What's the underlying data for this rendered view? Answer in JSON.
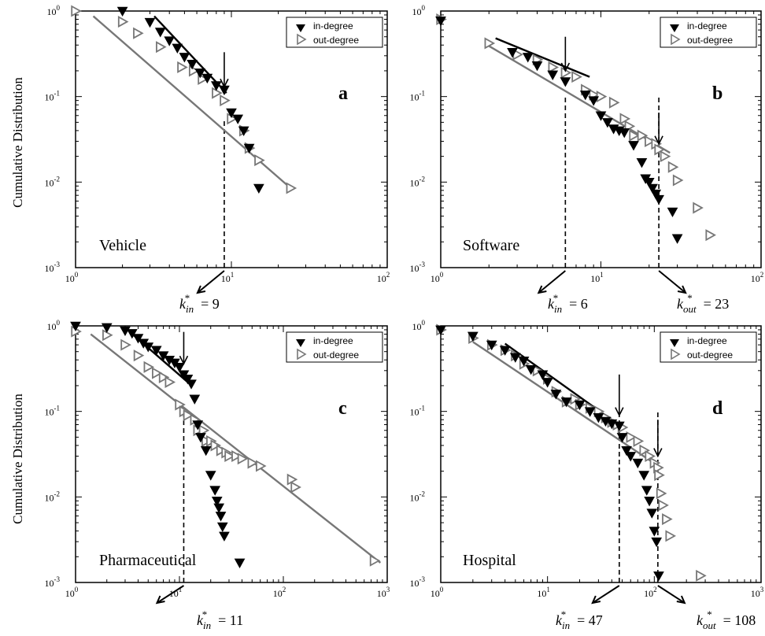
{
  "ylabel": "Cumulative Distribution",
  "legend": {
    "in": "in-degree",
    "out": "out-degree"
  },
  "colors": {
    "in": "#000000",
    "out": "#777777"
  },
  "chart_data": [
    {
      "type": "scatter",
      "letter": "a",
      "name": "Vehicle",
      "xscale": "log",
      "yscale": "log",
      "xlim": [
        1,
        100
      ],
      "ylim": [
        0.001,
        1
      ],
      "xticks": [
        {
          "b": "10",
          "e": "0",
          "v": 1
        },
        {
          "b": "10",
          "e": "1",
          "v": 10
        },
        {
          "b": "10",
          "e": "2",
          "v": 100
        }
      ],
      "yticks": [
        {
          "b": "10",
          "e": "0",
          "v": 1
        },
        {
          "b": "10",
          "e": "-1",
          "v": 0.1
        },
        {
          "b": "10",
          "e": "-2",
          "v": 0.01
        },
        {
          "b": "10",
          "e": "-3",
          "v": 0.001
        }
      ],
      "in_points": [
        [
          2,
          1
        ],
        [
          3,
          0.74
        ],
        [
          3.5,
          0.57
        ],
        [
          4,
          0.45
        ],
        [
          4.5,
          0.37
        ],
        [
          5,
          0.29
        ],
        [
          5.6,
          0.24
        ],
        [
          6.3,
          0.19
        ],
        [
          7,
          0.165
        ],
        [
          8,
          0.135
        ],
        [
          9,
          0.12
        ],
        [
          10,
          0.065
        ],
        [
          11,
          0.055
        ],
        [
          12,
          0.04
        ],
        [
          13,
          0.025
        ],
        [
          15,
          0.0085
        ]
      ],
      "out_points": [
        [
          1,
          1
        ],
        [
          2,
          0.75
        ],
        [
          2.5,
          0.55
        ],
        [
          3.5,
          0.38
        ],
        [
          4.8,
          0.22
        ],
        [
          5.7,
          0.2
        ],
        [
          6.5,
          0.16
        ],
        [
          8,
          0.11
        ],
        [
          9,
          0.09
        ],
        [
          10,
          0.055
        ],
        [
          12,
          0.04
        ],
        [
          13,
          0.025
        ],
        [
          15,
          0.018
        ],
        [
          24,
          0.0085
        ]
      ],
      "in_fit": [
        [
          3.2,
          0.87
        ],
        [
          9.3,
          0.11
        ]
      ],
      "out_fit": [
        [
          1.3,
          0.87
        ],
        [
          24,
          0.0085
        ]
      ],
      "vlines": [
        9
      ],
      "arrows": [
        {
          "x": 9,
          "y_top": 0.33,
          "y_tip": 0.13
        }
      ],
      "annotations": [
        {
          "k": "k",
          "sub": "in",
          "sup": "*",
          "rest": " = 9"
        }
      ]
    },
    {
      "type": "scatter",
      "letter": "b",
      "name": "Software",
      "xscale": "log",
      "yscale": "log",
      "xlim": [
        1,
        100
      ],
      "ylim": [
        0.001,
        1
      ],
      "xticks": [
        {
          "b": "10",
          "e": "0",
          "v": 1
        },
        {
          "b": "10",
          "e": "1",
          "v": 10
        },
        {
          "b": "10",
          "e": "2",
          "v": 100
        }
      ],
      "yticks": [
        {
          "b": "10",
          "e": "0",
          "v": 1
        },
        {
          "b": "10",
          "e": "-1",
          "v": 0.1
        },
        {
          "b": "10",
          "e": "-2",
          "v": 0.01
        },
        {
          "b": "10",
          "e": "-3",
          "v": 0.001
        }
      ],
      "in_points": [
        [
          1,
          0.77
        ],
        [
          2.8,
          0.33
        ],
        [
          3.5,
          0.29
        ],
        [
          4,
          0.23
        ],
        [
          5,
          0.18
        ],
        [
          6,
          0.15
        ],
        [
          8,
          0.105
        ],
        [
          9,
          0.09
        ],
        [
          10,
          0.06
        ],
        [
          11,
          0.05
        ],
        [
          12,
          0.042
        ],
        [
          13,
          0.04
        ],
        [
          14,
          0.038
        ],
        [
          16,
          0.027
        ],
        [
          18,
          0.017
        ],
        [
          19,
          0.011
        ],
        [
          20,
          0.01
        ],
        [
          21,
          0.0085
        ],
        [
          22,
          0.0073
        ],
        [
          23,
          0.0063
        ],
        [
          28,
          0.0045
        ],
        [
          30,
          0.0022
        ]
      ],
      "out_points": [
        [
          1,
          0.8
        ],
        [
          2,
          0.42
        ],
        [
          3,
          0.31
        ],
        [
          4,
          0.27
        ],
        [
          5,
          0.22
        ],
        [
          6,
          0.19
        ],
        [
          7,
          0.17
        ],
        [
          8,
          0.12
        ],
        [
          9,
          0.105
        ],
        [
          10,
          0.1
        ],
        [
          12,
          0.085
        ],
        [
          14,
          0.055
        ],
        [
          15,
          0.045
        ],
        [
          16,
          0.035
        ],
        [
          18,
          0.035
        ],
        [
          20,
          0.03
        ],
        [
          22,
          0.028
        ],
        [
          23,
          0.024
        ],
        [
          25,
          0.02
        ],
        [
          28,
          0.015
        ],
        [
          30,
          0.0105
        ],
        [
          40,
          0.005
        ],
        [
          48,
          0.0024
        ]
      ],
      "in_fit": [
        [
          2.2,
          0.48
        ],
        [
          8.5,
          0.17
        ]
      ],
      "out_fit": [
        [
          2,
          0.39
        ],
        [
          27,
          0.022
        ]
      ],
      "vlines": [
        6,
        23
      ],
      "arrows": [
        {
          "x": 6,
          "y_top": 0.5,
          "y_tip": 0.2
        },
        {
          "x": 23,
          "y_top": 0.065,
          "y_tip": 0.028
        }
      ],
      "annotations": [
        {
          "k": "k",
          "sub": "in",
          "sup": "*",
          "rest": " = 6"
        },
        {
          "k": "k",
          "sub": "out",
          "sup": "*",
          "rest": " = 23"
        }
      ]
    },
    {
      "type": "scatter",
      "letter": "c",
      "name": "Pharmaceutical",
      "xscale": "log",
      "yscale": "log",
      "xlim": [
        1,
        1000
      ],
      "ylim": [
        0.001,
        1
      ],
      "xticks": [
        {
          "b": "10",
          "e": "0",
          "v": 1
        },
        {
          "b": "10",
          "e": "1",
          "v": 10
        },
        {
          "b": "10",
          "e": "2",
          "v": 100
        },
        {
          "b": "10",
          "e": "3",
          "v": 1000
        }
      ],
      "yticks": [
        {
          "b": "10",
          "e": "0",
          "v": 1
        },
        {
          "b": "10",
          "e": "-1",
          "v": 0.1
        },
        {
          "b": "10",
          "e": "-2",
          "v": 0.01
        },
        {
          "b": "10",
          "e": "-3",
          "v": 0.001
        }
      ],
      "in_points": [
        [
          1,
          1
        ],
        [
          2,
          0.96
        ],
        [
          3,
          0.88
        ],
        [
          3.5,
          0.82
        ],
        [
          4,
          0.72
        ],
        [
          4.5,
          0.63
        ],
        [
          5,
          0.57
        ],
        [
          6,
          0.52
        ],
        [
          7,
          0.45
        ],
        [
          8,
          0.4
        ],
        [
          9,
          0.37
        ],
        [
          10,
          0.33
        ],
        [
          11,
          0.27
        ],
        [
          12,
          0.24
        ],
        [
          13,
          0.21
        ],
        [
          14,
          0.14
        ],
        [
          15,
          0.07
        ],
        [
          16,
          0.05
        ],
        [
          18,
          0.035
        ],
        [
          20,
          0.018
        ],
        [
          22,
          0.012
        ],
        [
          23,
          0.009
        ],
        [
          24,
          0.0075
        ],
        [
          25,
          0.006
        ],
        [
          26,
          0.0045
        ],
        [
          27,
          0.0035
        ],
        [
          38,
          0.0017
        ]
      ],
      "out_points": [
        [
          1,
          0.86
        ],
        [
          2,
          0.78
        ],
        [
          3,
          0.6
        ],
        [
          4,
          0.45
        ],
        [
          5,
          0.33
        ],
        [
          6,
          0.28
        ],
        [
          7,
          0.25
        ],
        [
          8,
          0.22
        ],
        [
          10,
          0.12
        ],
        [
          11,
          0.1
        ],
        [
          12,
          0.09
        ],
        [
          14,
          0.08
        ],
        [
          15,
          0.06
        ],
        [
          17,
          0.06
        ],
        [
          18,
          0.045
        ],
        [
          20,
          0.045
        ],
        [
          22,
          0.04
        ],
        [
          25,
          0.035
        ],
        [
          28,
          0.033
        ],
        [
          30,
          0.03
        ],
        [
          35,
          0.03
        ],
        [
          40,
          0.028
        ],
        [
          50,
          0.025
        ],
        [
          60,
          0.023
        ],
        [
          120,
          0.016
        ],
        [
          130,
          0.013
        ],
        [
          750,
          0.0018
        ]
      ],
      "in_fit": [
        [
          3,
          0.95
        ],
        [
          12,
          0.22
        ]
      ],
      "out_fit": [
        [
          1.4,
          0.8
        ],
        [
          860,
          0.0017
        ]
      ],
      "vlines": [
        11
      ],
      "arrows": [
        {
          "x": 11,
          "y_top": 0.85,
          "y_tip": 0.36
        }
      ],
      "annotations": [
        {
          "k": "k",
          "sub": "in",
          "sup": "*",
          "rest": " = 11"
        }
      ]
    },
    {
      "type": "scatter",
      "letter": "d",
      "name": "Hospital",
      "xscale": "log",
      "yscale": "log",
      "xlim": [
        1,
        1000
      ],
      "ylim": [
        0.001,
        1
      ],
      "xticks": [
        {
          "b": "10",
          "e": "0",
          "v": 1
        },
        {
          "b": "10",
          "e": "1",
          "v": 10
        },
        {
          "b": "10",
          "e": "2",
          "v": 100
        },
        {
          "b": "10",
          "e": "3",
          "v": 1000
        }
      ],
      "yticks": [
        {
          "b": "10",
          "e": "0",
          "v": 1
        },
        {
          "b": "10",
          "e": "-1",
          "v": 0.1
        },
        {
          "b": "10",
          "e": "-2",
          "v": 0.01
        },
        {
          "b": "10",
          "e": "-3",
          "v": 0.001
        }
      ],
      "in_points": [
        [
          1,
          0.9
        ],
        [
          2,
          0.76
        ],
        [
          3,
          0.6
        ],
        [
          4,
          0.52
        ],
        [
          5,
          0.43
        ],
        [
          6,
          0.39
        ],
        [
          7,
          0.31
        ],
        [
          9,
          0.27
        ],
        [
          10,
          0.22
        ],
        [
          12,
          0.16
        ],
        [
          15,
          0.13
        ],
        [
          20,
          0.12
        ],
        [
          25,
          0.1
        ],
        [
          30,
          0.085
        ],
        [
          35,
          0.077
        ],
        [
          40,
          0.072
        ],
        [
          47,
          0.068
        ],
        [
          50,
          0.05
        ],
        [
          55,
          0.035
        ],
        [
          60,
          0.03
        ],
        [
          70,
          0.025
        ],
        [
          80,
          0.018
        ],
        [
          85,
          0.012
        ],
        [
          90,
          0.009
        ],
        [
          95,
          0.0065
        ],
        [
          100,
          0.004
        ],
        [
          105,
          0.003
        ],
        [
          110,
          0.0012
        ]
      ],
      "out_points": [
        [
          1,
          0.9
        ],
        [
          2,
          0.72
        ],
        [
          3,
          0.6
        ],
        [
          4,
          0.52
        ],
        [
          5,
          0.45
        ],
        [
          6,
          0.36
        ],
        [
          8,
          0.3
        ],
        [
          10,
          0.24
        ],
        [
          12,
          0.17
        ],
        [
          15,
          0.13
        ],
        [
          18,
          0.14
        ],
        [
          20,
          0.12
        ],
        [
          25,
          0.11
        ],
        [
          30,
          0.1
        ],
        [
          35,
          0.085
        ],
        [
          40,
          0.075
        ],
        [
          45,
          0.07
        ],
        [
          50,
          0.065
        ],
        [
          60,
          0.05
        ],
        [
          70,
          0.045
        ],
        [
          80,
          0.035
        ],
        [
          90,
          0.03
        ],
        [
          100,
          0.025
        ],
        [
          108,
          0.022
        ],
        [
          110,
          0.018
        ],
        [
          115,
          0.011
        ],
        [
          120,
          0.008
        ],
        [
          130,
          0.0055
        ],
        [
          140,
          0.0035
        ],
        [
          270,
          0.0012
        ]
      ],
      "in_fit": [
        [
          4,
          0.62
        ],
        [
          47,
          0.069
        ]
      ],
      "out_fit": [
        [
          2,
          0.65
        ],
        [
          115,
          0.022
        ]
      ],
      "vlines": [
        47,
        108
      ],
      "arrows": [
        {
          "x": 47,
          "y_top": 0.27,
          "y_tip": 0.09
        },
        {
          "x": 108,
          "y_top": 0.08,
          "y_tip": 0.03
        }
      ],
      "annotations": [
        {
          "k": "k",
          "sub": "in",
          "sup": "*",
          "rest": " = 47"
        },
        {
          "k": "k",
          "sub": "out",
          "sup": "*",
          "rest": " = 108"
        }
      ]
    }
  ]
}
